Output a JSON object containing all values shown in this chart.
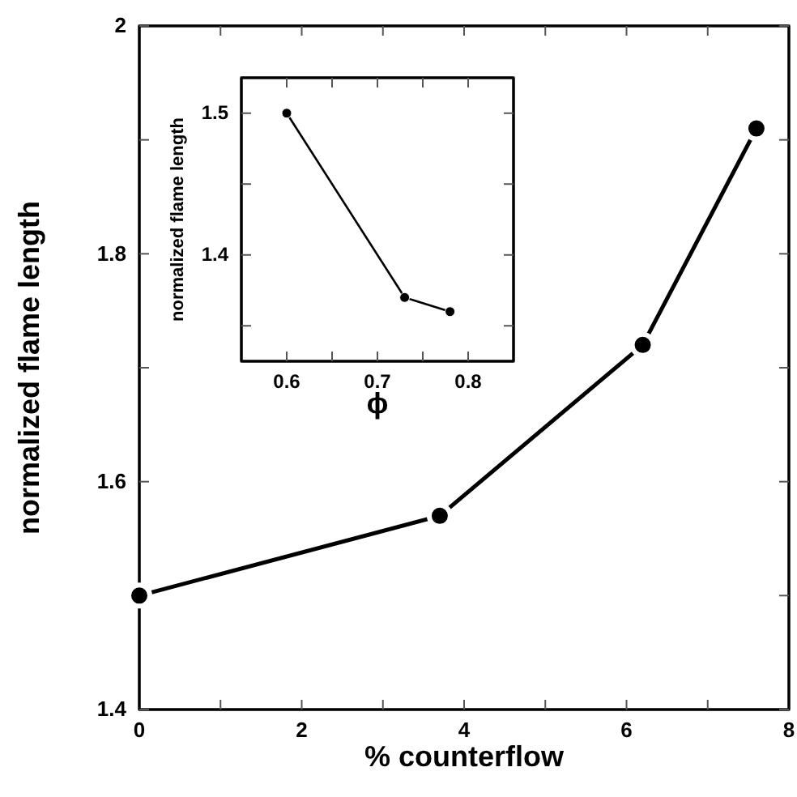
{
  "chart_data": [
    {
      "type": "line",
      "xlabel": "% counterflow",
      "ylabel": "normalized flame length",
      "x": [
        0,
        3.7,
        6.2,
        7.6
      ],
      "series": [
        {
          "color": "#000000",
          "values": [
            1.5,
            1.57,
            1.72,
            1.91
          ]
        }
      ],
      "xlim": [
        0,
        8
      ],
      "xticks": [
        0,
        {
          "value": 1,
          "label": null
        },
        2,
        {
          "value": 3,
          "label": null
        },
        4,
        {
          "value": 5,
          "label": null
        },
        6,
        {
          "value": 7,
          "label": null
        },
        8
      ],
      "ylim": [
        1.4,
        2
      ],
      "yticks": [
        1.4,
        {
          "value": 1.5,
          "label": null
        },
        1.6,
        {
          "value": 1.7,
          "label": null
        },
        1.8,
        {
          "value": 1.9,
          "label": null
        },
        2
      ],
      "marker": "circle",
      "line_style": "solid"
    },
    {
      "type": "line",
      "xlabel": "ϕ",
      "ylabel": "normalized flame length",
      "x": [
        0.6,
        0.73,
        0.78
      ],
      "series": [
        {
          "color": "#000000",
          "values": [
            1.5,
            1.37,
            1.36
          ]
        }
      ],
      "xlim": [
        0.55,
        0.85
      ],
      "xticks": [
        0.6,
        {
          "value": 0.65,
          "label": null
        },
        0.7,
        {
          "value": 0.75,
          "label": null
        },
        0.8
      ],
      "ylim": [
        1.325,
        1.525
      ],
      "yticks": [
        {
          "value": 1.35,
          "label": null
        },
        1.4,
        {
          "value": 1.45,
          "label": null
        },
        1.5
      ],
      "marker": "circle",
      "line_style": "solid"
    }
  ]
}
